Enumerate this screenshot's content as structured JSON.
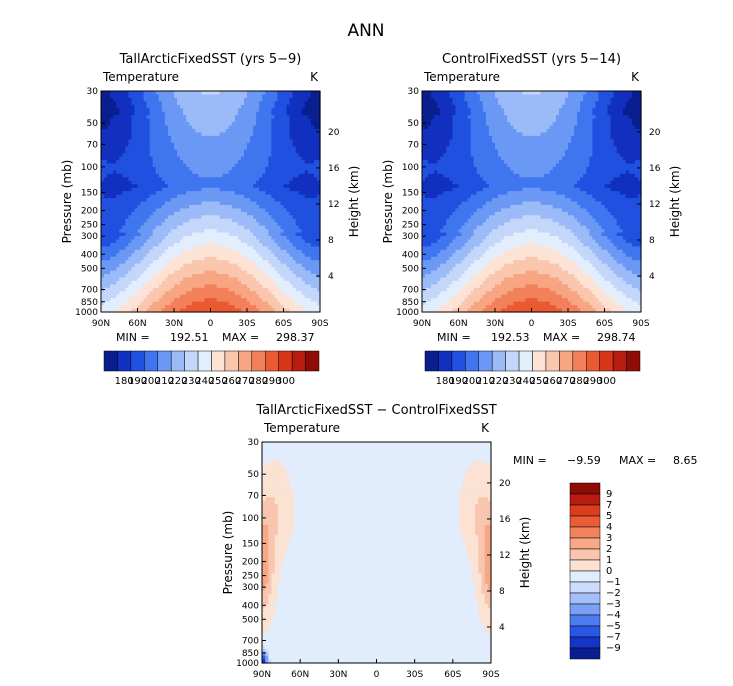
{
  "figure": {
    "title": "ANN"
  },
  "colors": {
    "abs_palette": [
      "#0a1f8f",
      "#1230c0",
      "#2050e0",
      "#3f76f0",
      "#6b98f5",
      "#9bbaf8",
      "#c4d7fb",
      "#e3eefd",
      "#fce3d6",
      "#fac7ae",
      "#f7a582",
      "#f2805a",
      "#ea5a32",
      "#d8361a",
      "#b81c0e",
      "#8f0c06"
    ],
    "diff_palette": [
      "#0a1f8f",
      "#1535c8",
      "#2a58e6",
      "#4c7cf0",
      "#7aa0f5",
      "#a4bff9",
      "#cbdcfc",
      "#e1ecfd",
      "#fbe2d3",
      "#f8c6ae",
      "#f6a887",
      "#f2835f",
      "#ec5c36",
      "#dc3d1d",
      "#b81c0e",
      "#8f0c06"
    ]
  },
  "chart_data": [
    {
      "type": "heatmap",
      "title": "TallArcticFixedSST (yrs 5−9)",
      "variable": "Temperature",
      "units": "K",
      "ylabel": "Pressure (mb)",
      "ylabel_right": "Height (km)",
      "x_ticks": [
        "90N",
        "60N",
        "30N",
        "0",
        "30S",
        "60S",
        "90S"
      ],
      "y_ticks": [
        "30",
        "50",
        "70",
        "100",
        "150",
        "200",
        "250",
        "300",
        "400",
        "500",
        "700",
        "850",
        "1000"
      ],
      "y_ticks_right": [
        "20",
        "16",
        "12",
        "8",
        "4"
      ],
      "min_label": "MIN =",
      "min_value": "192.51",
      "max_label": "MAX =",
      "max_value": "298.37",
      "min": 192.51,
      "max": 298.37,
      "colorbar_labels": [
        "180",
        "190",
        "200",
        "210",
        "220",
        "230",
        "240",
        "250",
        "260",
        "270",
        "280",
        "290",
        "300"
      ]
    },
    {
      "type": "heatmap",
      "title": "ControlFixedSST (yrs 5−14)",
      "variable": "Temperature",
      "units": "K",
      "ylabel": "Pressure (mb)",
      "ylabel_right": "Height (km)",
      "x_ticks": [
        "90N",
        "60N",
        "30N",
        "0",
        "30S",
        "60S",
        "90S"
      ],
      "y_ticks": [
        "30",
        "50",
        "70",
        "100",
        "150",
        "200",
        "250",
        "300",
        "400",
        "500",
        "700",
        "850",
        "1000"
      ],
      "y_ticks_right": [
        "20",
        "16",
        "12",
        "8",
        "4"
      ],
      "min_label": "MIN =",
      "min_value": "192.53",
      "max_label": "MAX =",
      "max_value": "298.74",
      "min": 192.53,
      "max": 298.74,
      "colorbar_labels": [
        "180",
        "190",
        "200",
        "210",
        "220",
        "230",
        "240",
        "250",
        "260",
        "270",
        "280",
        "290",
        "300"
      ]
    },
    {
      "type": "heatmap",
      "title": "TallArcticFixedSST − ControlFixedSST",
      "variable": "Temperature",
      "units": "K",
      "ylabel": "Pressure (mb)",
      "ylabel_right": "Height (km)",
      "x_ticks": [
        "90N",
        "60N",
        "30N",
        "0",
        "30S",
        "60S",
        "90S"
      ],
      "y_ticks": [
        "30",
        "50",
        "70",
        "100",
        "150",
        "200",
        "250",
        "300",
        "400",
        "500",
        "700",
        "850",
        "1000"
      ],
      "y_ticks_right": [
        "20",
        "16",
        "12",
        "8",
        "4"
      ],
      "min_label": "MIN =",
      "min_value": "−9.59",
      "max_label": "MAX =",
      "max_value": "8.65",
      "min": -9.59,
      "max": 8.65,
      "colorbar_labels": [
        "9",
        "7",
        "5",
        "4",
        "3",
        "2",
        "1",
        "0",
        "−1",
        "−2",
        "−3",
        "−4",
        "−5",
        "−7",
        "−9"
      ]
    }
  ]
}
